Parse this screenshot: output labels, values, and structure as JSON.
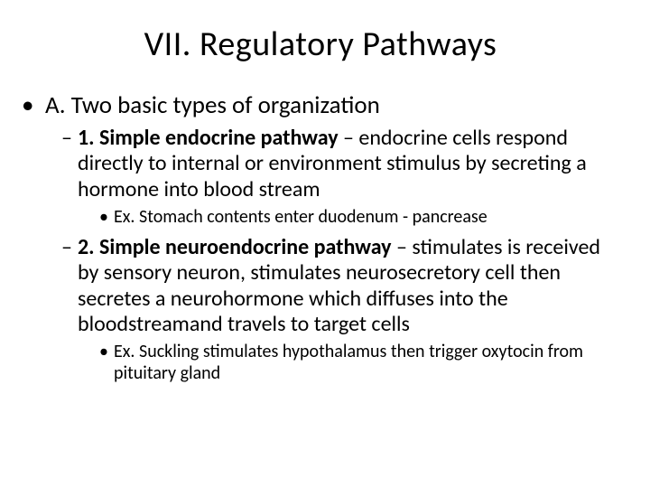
{
  "title": "VII. Regulatory Pathways",
  "lvl1": {
    "text": "A. Two basic types of organization"
  },
  "item1": {
    "bold": "1. Simple endocrine pathway ",
    "rest": "– endocrine cells respond directly to internal or environment stimulus by secreting a hormone into blood stream",
    "ex": "Ex. Stomach contents enter duodenum - pancrease"
  },
  "item2": {
    "bold": "2. Simple neuroendocrine pathway ",
    "rest": "– stimulates is received by sensory neuron, stimulates neurosecretory cell then secretes a neurohormone which diffuses into the bloodstreamand travels to target cells",
    "ex": "Ex. Suckling stimulates hypothalamus then trigger oxytocin from pituitary gland"
  },
  "colors": {
    "text": "#000000",
    "background": "#ffffff"
  },
  "typography": {
    "title_fontsize": 38,
    "lvl1_fontsize": 27,
    "lvl2_fontsize": 24,
    "lvl3_fontsize": 20,
    "font_family": "Calibri"
  }
}
